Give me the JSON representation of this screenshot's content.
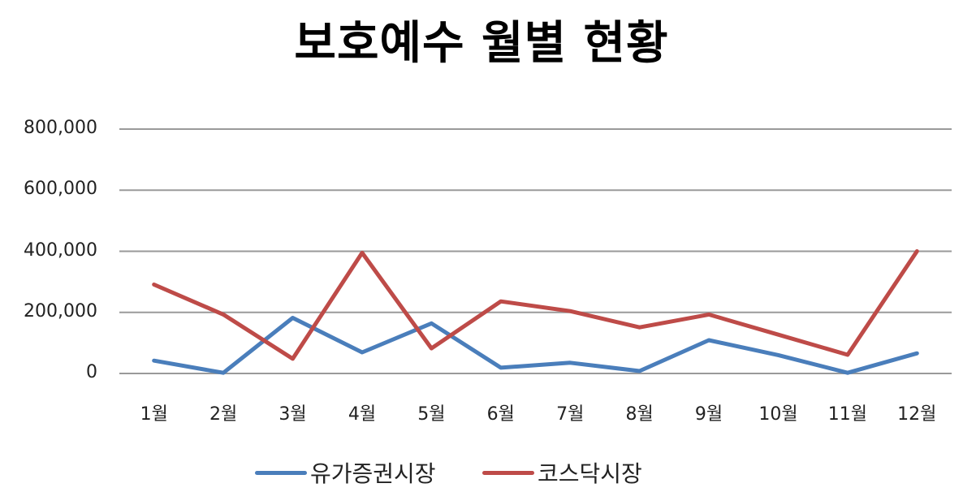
{
  "chart_data": {
    "type": "line",
    "title": "보호예수 월별 현황",
    "xlabel": "",
    "ylabel": "",
    "categories": [
      "1월",
      "2월",
      "3월",
      "4월",
      "5월",
      "6월",
      "7월",
      "8월",
      "9월",
      "10월",
      "11월",
      "12월"
    ],
    "series": [
      {
        "name": "유가증권시장",
        "color": "#4a7ebb",
        "values": [
          42000,
          2000,
          182000,
          69000,
          164000,
          19000,
          35000,
          8000,
          109000,
          60000,
          2000,
          66000
        ]
      },
      {
        "name": "코스닥시장",
        "color": "#be4b48",
        "values": [
          291000,
          193000,
          48000,
          395000,
          82000,
          236000,
          204000,
          151000,
          193000,
          127000,
          61000,
          400000
        ]
      }
    ],
    "ylim": [
      0,
      800000
    ],
    "yticks": [
      0,
      200000,
      400000,
      600000,
      800000
    ],
    "ytick_labels": [
      "0",
      "200,000",
      "400,000",
      "600,000",
      "800,000"
    ],
    "grid": true,
    "legend_position": "bottom"
  },
  "legend": {
    "items": [
      {
        "label": "유가증권시장",
        "color": "#4a7ebb"
      },
      {
        "label": "코스닥시장",
        "color": "#be4b48"
      }
    ]
  }
}
